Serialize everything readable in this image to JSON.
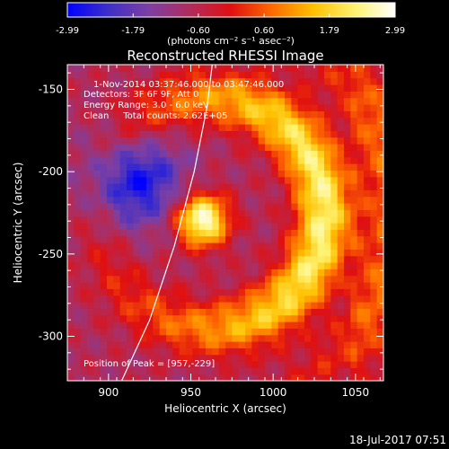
{
  "chart_data": {
    "type": "heatmap",
    "title": "Reconstructed RHESSI Image",
    "xlabel": "Heliocentric X (arcsec)",
    "ylabel": "Heliocentric Y (arcsec)",
    "xlim": [
      875,
      1067
    ],
    "ylim": [
      -327,
      -135
    ],
    "x_ticks": [
      900,
      950,
      1000,
      1050
    ],
    "y_ticks": [
      -150,
      -200,
      -250,
      -300
    ],
    "colorbar": {
      "min": -2.99,
      "max": 2.99,
      "ticks": [
        "-2.99",
        "-1.79",
        "-0.60",
        "0.60",
        "1.79",
        "2.99"
      ],
      "unit_label": "(photons cm⁻² s⁻¹ asec⁻²)",
      "colors": [
        "#0000ff",
        "#3e2fc8",
        "#7e3fa2",
        "#b02c5c",
        "#e01010",
        "#ff6a00",
        "#ffc000",
        "#fff26e",
        "#ffffff"
      ]
    },
    "annotations": {
      "time_range": "1-Nov-2014 03:37:46.000 to 03:47:46.000",
      "detectors": "Detectors: 3F 6F 9F, Att 0",
      "energy": "Energy Range: 3.0 - 6.0 keV",
      "clean": "Clean     Total counts: 2.62E+05",
      "peak": "Position of Peak = [957,-229]"
    },
    "features": {
      "core_peak": [
        957,
        -229
      ],
      "ring_center": [
        960,
        -225
      ],
      "ring_radius_arcsec": 70,
      "dark_lobe_center": [
        915,
        -205
      ],
      "limb_points": [
        [
          908,
          -327
        ],
        [
          925,
          -290
        ],
        [
          940,
          -245
        ],
        [
          952,
          -200
        ],
        [
          960,
          -160
        ],
        [
          963,
          -135
        ]
      ]
    },
    "timestamp": "18-Jul-2017 07:51"
  }
}
